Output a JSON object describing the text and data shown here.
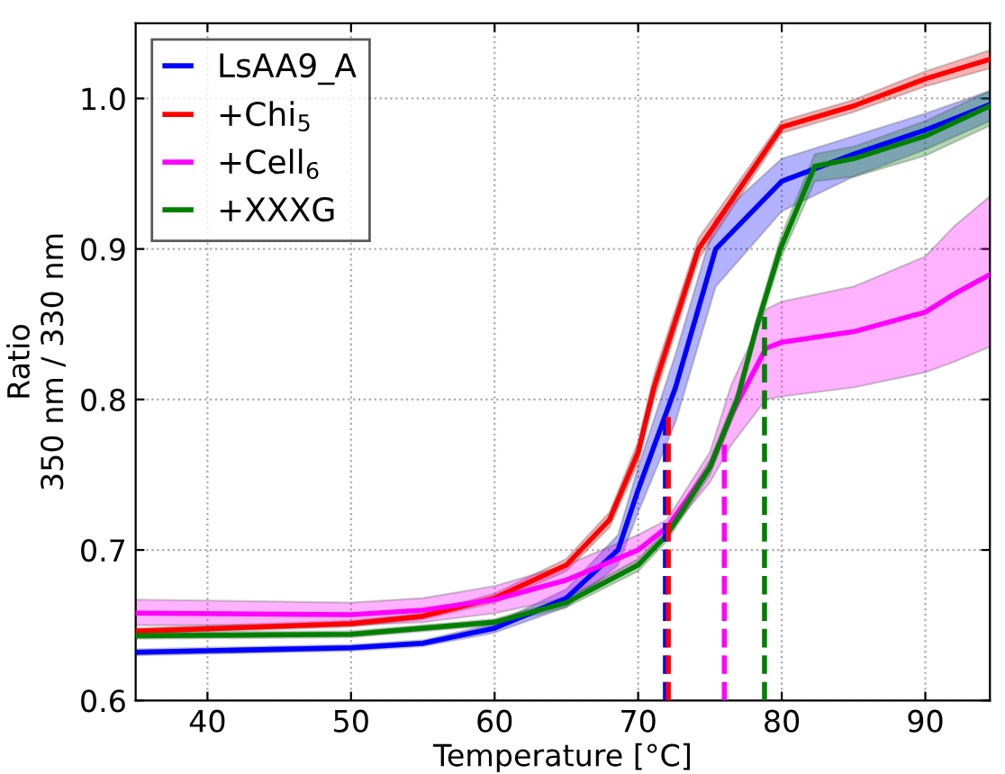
{
  "chart_data": {
    "type": "line",
    "xlabel": "Temperature [°C]",
    "ylabel": "Ratio\n350 nm / 330 nm",
    "xlim": [
      35,
      94.5
    ],
    "ylim": [
      0.6,
      1.05
    ],
    "xticks": [
      40,
      50,
      60,
      70,
      80,
      90
    ],
    "yticks": [
      0.6,
      0.7,
      0.8,
      0.9,
      {
        "value": 1.0,
        "label": "1.0"
      }
    ],
    "grid": true,
    "legend": "top left",
    "marker": "none",
    "line_style": "solid",
    "series": [
      {
        "name": "LsAA9_A",
        "color": "#0000ff",
        "x": [
          35,
          50,
          55,
          60,
          65,
          68.6,
          70,
          72.6,
          75.4,
          80,
          85,
          90,
          94.5
        ],
        "values": [
          0.632,
          0.635,
          0.638,
          0.648,
          0.668,
          0.7,
          0.74,
          0.808,
          0.9,
          0.945,
          0.963,
          0.979,
          0.996
        ],
        "lower": [
          0.63,
          0.633,
          0.636,
          0.645,
          0.662,
          0.69,
          0.725,
          0.785,
          0.875,
          0.925,
          0.948,
          0.966,
          0.985
        ],
        "upper": [
          0.634,
          0.637,
          0.64,
          0.651,
          0.674,
          0.71,
          0.755,
          0.83,
          0.92,
          0.96,
          0.975,
          0.99,
          1.005
        ]
      },
      {
        "name": "+Chi$_{5}$",
        "color": "#ff0000",
        "x": [
          35,
          50,
          55,
          60,
          65,
          68,
          70,
          71.1,
          74.2,
          80,
          85,
          90,
          94.5
        ],
        "values": [
          0.646,
          0.651,
          0.656,
          0.668,
          0.69,
          0.72,
          0.765,
          0.808,
          0.9,
          0.981,
          0.995,
          1.013,
          1.026
        ],
        "lower": [
          0.644,
          0.649,
          0.654,
          0.665,
          0.686,
          0.715,
          0.758,
          0.8,
          0.893,
          0.977,
          0.991,
          1.008,
          1.02
        ],
        "upper": [
          0.648,
          0.653,
          0.658,
          0.671,
          0.694,
          0.725,
          0.772,
          0.816,
          0.907,
          0.985,
          0.999,
          1.018,
          1.032
        ]
      },
      {
        "name": "+Cell$_{6}$",
        "color": "#ff00ff",
        "x": [
          35,
          50,
          55,
          60,
          65,
          70,
          72,
          75,
          76.5,
          78.9,
          80,
          85,
          90,
          92,
          94.5
        ],
        "values": [
          0.658,
          0.657,
          0.66,
          0.667,
          0.68,
          0.7,
          0.715,
          0.755,
          0.79,
          0.834,
          0.838,
          0.845,
          0.858,
          0.87,
          0.883
        ],
        "lower": [
          0.65,
          0.65,
          0.652,
          0.658,
          0.668,
          0.69,
          0.71,
          0.745,
          0.77,
          0.8,
          0.802,
          0.808,
          0.818,
          0.825,
          0.835
        ],
        "upper": [
          0.667,
          0.665,
          0.668,
          0.676,
          0.69,
          0.71,
          0.72,
          0.765,
          0.81,
          0.86,
          0.865,
          0.875,
          0.895,
          0.915,
          0.935
        ]
      },
      {
        "name": "+XXXG",
        "color": "#008000",
        "x": [
          35,
          50,
          60,
          65,
          70,
          72,
          75,
          76.9,
          78.3,
          79.9,
          82.3,
          85,
          90,
          94.5
        ],
        "values": [
          0.643,
          0.644,
          0.652,
          0.665,
          0.69,
          0.71,
          0.755,
          0.8,
          0.85,
          0.9,
          0.955,
          0.96,
          0.975,
          0.995
        ],
        "lower": [
          0.641,
          0.642,
          0.65,
          0.662,
          0.686,
          0.706,
          0.75,
          0.795,
          0.845,
          0.893,
          0.945,
          0.948,
          0.962,
          0.982
        ],
        "upper": [
          0.645,
          0.646,
          0.654,
          0.668,
          0.694,
          0.714,
          0.76,
          0.805,
          0.855,
          0.907,
          0.963,
          0.968,
          0.985,
          1.005
        ]
      },
      {
        "color": "#0000ff",
        "line_style": "dashed",
        "x": [
          71.9,
          71.9
        ],
        "values": [
          0.6,
          0.79
        ]
      },
      {
        "color": "#ff0000",
        "line_style": "dashed",
        "x": [
          72.1,
          72.1
        ],
        "values": [
          0.6,
          0.79
        ]
      },
      {
        "color": "#ff00ff",
        "line_style": "dashed",
        "x": [
          76,
          76
        ],
        "values": [
          0.6,
          0.77
        ]
      },
      {
        "color": "#008000",
        "line_style": "dashed",
        "x": [
          78.8,
          78.8
        ],
        "values": [
          0.6,
          0.855
        ]
      }
    ]
  }
}
